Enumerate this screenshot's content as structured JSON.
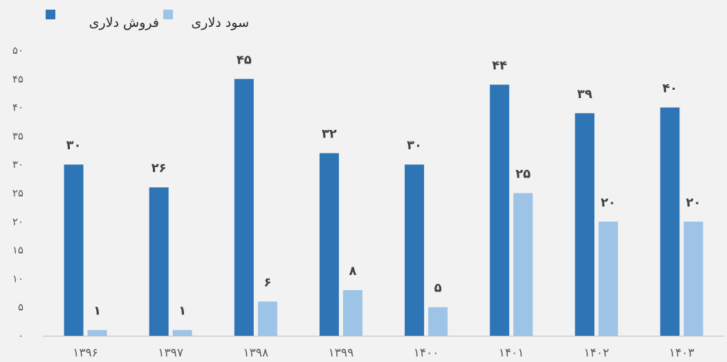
{
  "chart_data": {
    "type": "bar",
    "categories": [
      "۱۳۹۶",
      "۱۳۹۷",
      "۱۳۹۸",
      "۱۳۹۹",
      "۱۴۰۰",
      "۱۴۰۱",
      "۱۴۰۲",
      "۱۴۰۳"
    ],
    "series": [
      {
        "name": "فروش دلاری",
        "color": "#2e75b6",
        "values": [
          30,
          26,
          45,
          32,
          30,
          44,
          39,
          40
        ],
        "labels": [
          "۳۰",
          "۲۶",
          "۴۵",
          "۳۲",
          "۳۰",
          "۴۴",
          "۳۹",
          "۴۰"
        ]
      },
      {
        "name": "سود دلاری",
        "color": "#9dc3e6",
        "values": [
          1,
          1,
          6,
          8,
          5,
          25,
          20,
          20
        ],
        "labels": [
          "۱",
          "۱",
          "۶",
          "۸",
          "۵",
          "۲۵",
          "۲۰",
          "۲۰"
        ]
      }
    ],
    "ylim": [
      0,
      50
    ],
    "yticks": [
      0,
      5,
      10,
      15,
      20,
      25,
      30,
      35,
      40,
      45,
      50
    ],
    "ytick_labels": [
      "۰",
      "۵",
      "۱۰",
      "۱۵",
      "۲۰",
      "۲۵",
      "۳۰",
      "۳۵",
      "۴۰",
      "۴۵",
      "۵۰"
    ],
    "legend_position": "top-left",
    "grid": false,
    "title": "",
    "xlabel": "",
    "ylabel": ""
  }
}
